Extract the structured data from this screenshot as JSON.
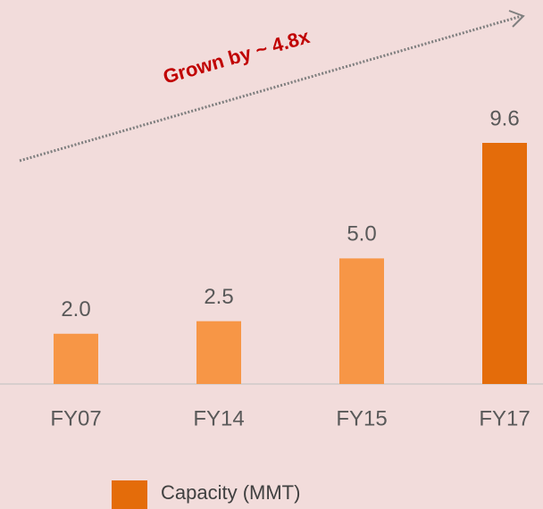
{
  "chart_data": {
    "type": "bar",
    "categories": [
      "FY07",
      "FY14",
      "FY15",
      "FY17"
    ],
    "series": [
      {
        "name": "Capacity (MMT)",
        "color": "#e46c0a",
        "values": [
          2,
          2.5,
          5,
          9.6
        ],
        "value_labels": [
          "2.0",
          "2.5",
          "5.0",
          "9.6"
        ],
        "colors": [
          "#f79646",
          "#f79646",
          "#f79646",
          "#e46c0a"
        ]
      }
    ],
    "annotation": "Grown by ~ 4.8x"
  }
}
